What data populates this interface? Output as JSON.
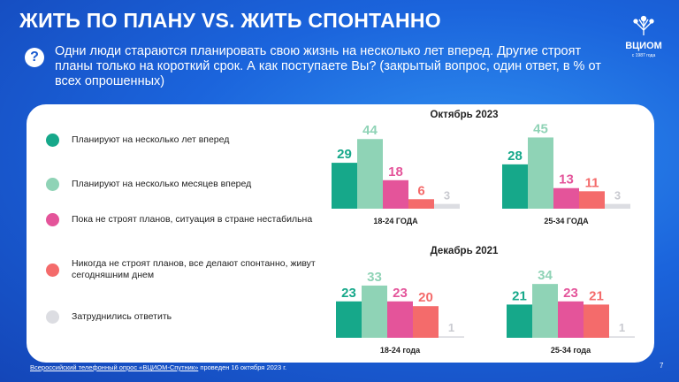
{
  "slide": {
    "title": "ЖИТЬ ПО ПЛАНУ VS. ЖИТЬ СПОНТАННО",
    "question_mark": "?",
    "question": "Одни люди стараются планировать свою жизнь на несколько лет вперед. Другие строят планы только на короткий срок. А как поступаете Вы? (закрытый вопрос, один ответ, в % от всех опрошенных)",
    "logo_name": "ВЦИОМ",
    "logo_tagline": "с 1987 года",
    "footer_link": "Всероссийский телефонный опрос «ВЦИОМ-Спутник»",
    "footer_rest": " проведен 16 октября 2023 г.",
    "page_number": "7"
  },
  "legend": [
    {
      "label": "Планируют на несколько лет вперед",
      "color": "#16a88a"
    },
    {
      "label": "Планируют на несколько месяцев вперед",
      "color": "#8fd3b6"
    },
    {
      "label": "Пока не строят планов, ситуация в стране нестабильна",
      "color": "#e4549a"
    },
    {
      "label": "Никогда не строят планов, все делают спонтанно, живут сегодняшним днем",
      "color": "#f46b6b"
    },
    {
      "label": "Затруднились ответить",
      "color": "#dcdde2"
    }
  ],
  "chart_data": [
    {
      "type": "bar",
      "title": "Октябрь 2023",
      "groups": [
        {
          "label": "18-24 ГОДА",
          "values": [
            29,
            44,
            18,
            6,
            3
          ]
        },
        {
          "label": "25-34 ГОДА",
          "values": [
            28,
            45,
            13,
            11,
            3
          ]
        }
      ],
      "series": [
        "Планируют на несколько лет вперед",
        "Планируют на несколько месяцев вперед",
        "Пока не строят планов, ситуация в стране нестабильна",
        "Никогда не строят планов, все делают спонтанно, живут сегодняшним днем",
        "Затруднились ответить"
      ],
      "unit": "%",
      "ylim": [
        0,
        50
      ]
    },
    {
      "type": "bar",
      "title": "Декабрь 2021",
      "groups": [
        {
          "label": "18-24 года",
          "values": [
            23,
            33,
            23,
            20,
            1
          ]
        },
        {
          "label": "25-34 года",
          "values": [
            21,
            34,
            23,
            21,
            1
          ]
        }
      ],
      "series": [
        "Планируют на несколько лет вперед",
        "Планируют на несколько месяцев вперед",
        "Пока не строят планов, ситуация в стране нестабильна",
        "Никогда не строят планов, все делают спонтанно, живут сегодняшним днем",
        "Затруднились ответить"
      ],
      "unit": "%",
      "ylim": [
        0,
        50
      ]
    }
  ]
}
